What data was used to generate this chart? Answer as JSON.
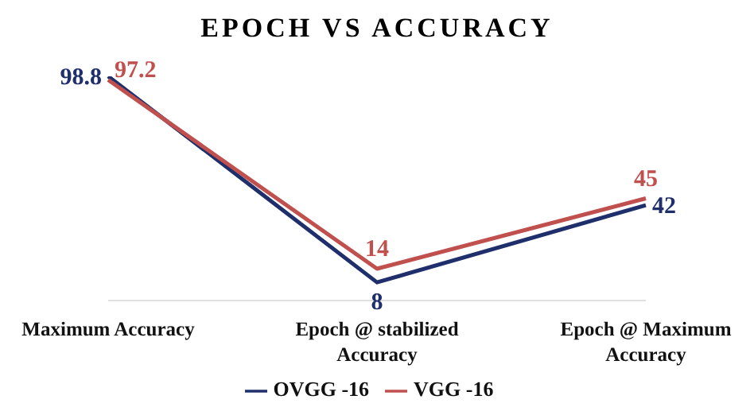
{
  "chart_data": {
    "type": "line",
    "title": "EPOCH VS ACCURACY",
    "categories": [
      "Maximum Accuracy",
      "Epoch @ stabilized Accuracy",
      "Epoch @ Maximum Accuracy"
    ],
    "series": [
      {
        "name": "OVGG -16",
        "color": "#1f2f6b",
        "values": [
          98.8,
          8,
          42
        ]
      },
      {
        "name": "VGG -16",
        "color": "#c0504d",
        "values": [
          97.2,
          14,
          45
        ]
      }
    ],
    "data_labels": true,
    "tick_labels": "x",
    "legend": "bottom",
    "marker": "none",
    "line_style": "solid",
    "grid": false
  }
}
